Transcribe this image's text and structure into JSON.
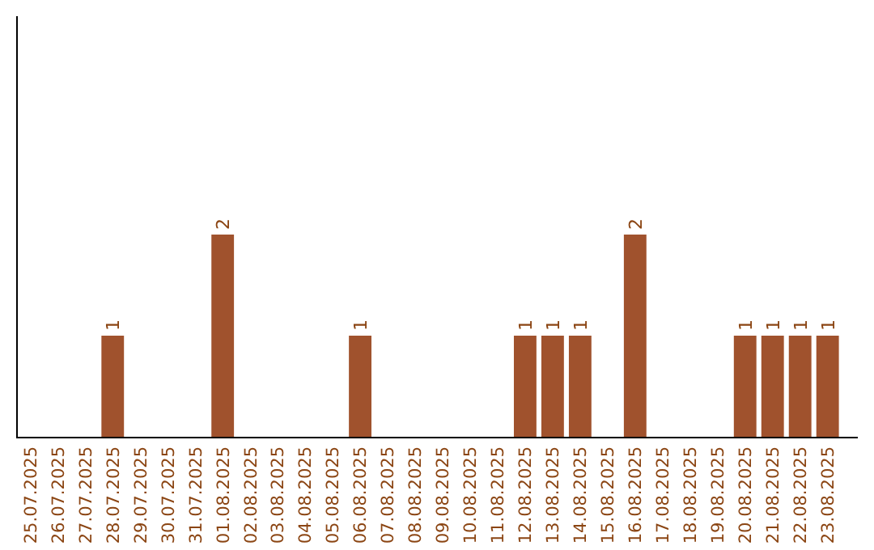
{
  "chart_data": {
    "type": "bar",
    "categories": [
      "25.07.2025",
      "26.07.2025",
      "27.07.2025",
      "28.07.2025",
      "29.07.2025",
      "30.07.2025",
      "31.07.2025",
      "01.08.2025",
      "02.08.2025",
      "03.08.2025",
      "04.08.2025",
      "05.08.2025",
      "06.08.2025",
      "07.08.2025",
      "08.08.2025",
      "09.08.2025",
      "10.08.2025",
      "11.08.2025",
      "12.08.2025",
      "13.08.2025",
      "14.08.2025",
      "15.08.2025",
      "16.08.2025",
      "17.08.2025",
      "18.08.2025",
      "19.08.2025",
      "20.08.2025",
      "21.08.2025",
      "22.08.2025",
      "23.08.2025"
    ],
    "values": [
      0,
      0,
      0,
      1,
      0,
      0,
      0,
      2,
      0,
      0,
      0,
      0,
      1,
      0,
      0,
      0,
      0,
      0,
      1,
      1,
      1,
      0,
      2,
      0,
      0,
      0,
      1,
      1,
      1,
      1
    ],
    "value_labels": [
      null,
      null,
      null,
      "1",
      null,
      null,
      null,
      "2",
      null,
      null,
      null,
      null,
      "1",
      null,
      null,
      null,
      null,
      null,
      "1",
      "1",
      "1",
      null,
      "2",
      null,
      null,
      null,
      "1",
      "1",
      "1",
      "1"
    ],
    "color": "#a0522d"
  }
}
